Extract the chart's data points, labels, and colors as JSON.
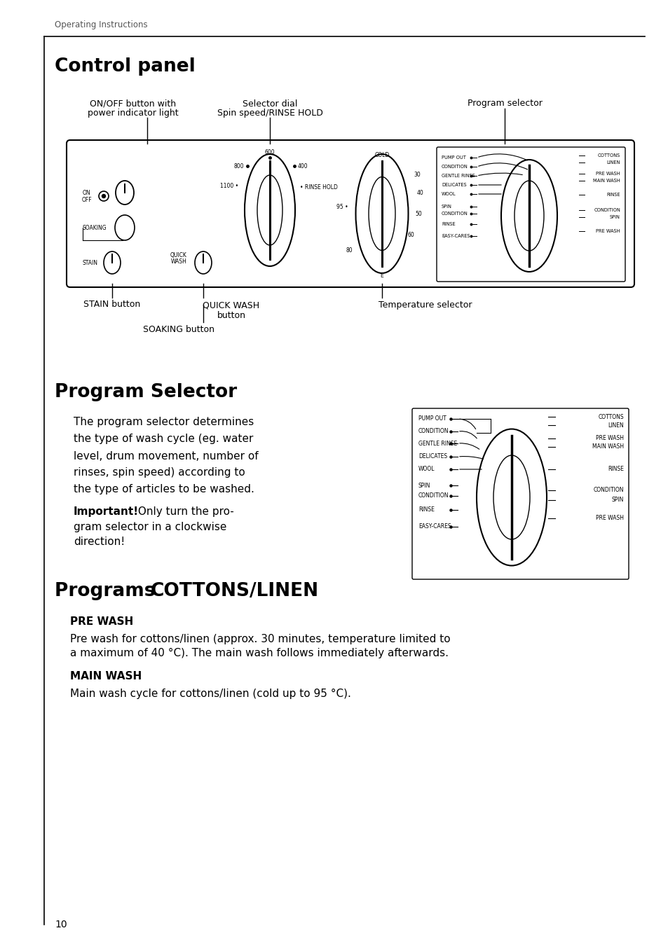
{
  "page_title": "Operating Instructions",
  "section1_title": "Control panel",
  "section2_title": "Program Selector",
  "section3_title": "Programs COTTONS/LINEN",
  "label_on_off_1": "ON/OFF button with",
  "label_on_off_2": "power indicator light",
  "label_selector_1": "Selector dial",
  "label_selector_2": "Spin speed/RINSE HOLD",
  "label_program": "Program selector",
  "label_stain": "STAIN button",
  "label_quick_1": "QUICK WASH",
  "label_quick_2": "button",
  "label_soaking": "SOAKING button",
  "label_temp": "Temperature selector",
  "program_selector_text_lines": [
    "The program selector determines",
    "the type of wash cycle (eg. water",
    "level, drum movement, number of",
    "rinses, spin speed) according to",
    "the type of articles to be washed."
  ],
  "important_bold": "Important!",
  "important_rest_lines": [
    " Only turn the pro-",
    "gram selector in a clockwise",
    "direction!"
  ],
  "pre_wash_heading": "PRE WASH",
  "pre_wash_body_1": "Pre wash for cottons/linen (approx. 30 minutes, temperature limited to",
  "pre_wash_body_2": "a maximum of 40 °C). The main wash follows immediately afterwards.",
  "main_wash_heading": "MAIN WASH",
  "main_wash_body": "Main wash cycle for cottons/linen (cold up to 95 °C).",
  "page_number": "10",
  "bg_color": "#ffffff",
  "text_color": "#000000"
}
